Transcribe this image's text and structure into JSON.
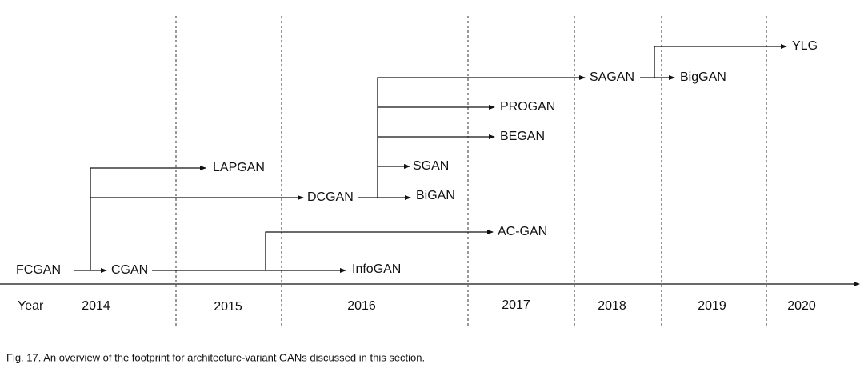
{
  "axis_label": "Year",
  "years": [
    "2014",
    "2015",
    "2016",
    "2017",
    "2018",
    "2019",
    "2020"
  ],
  "nodes": [
    {
      "label": "FCGAN"
    },
    {
      "label": "CGAN"
    },
    {
      "label": "LAPGAN"
    },
    {
      "label": "DCGAN"
    },
    {
      "label": "InfoGAN"
    },
    {
      "label": "AC-GAN"
    },
    {
      "label": "BiGAN"
    },
    {
      "label": "SGAN"
    },
    {
      "label": "BEGAN"
    },
    {
      "label": "PROGAN"
    },
    {
      "label": "SAGAN"
    },
    {
      "label": "BigGAN"
    },
    {
      "label": "YLG"
    }
  ],
  "caption": "Fig. 17. An overview of the footprint for architecture-variant GANs discussed in this section."
}
